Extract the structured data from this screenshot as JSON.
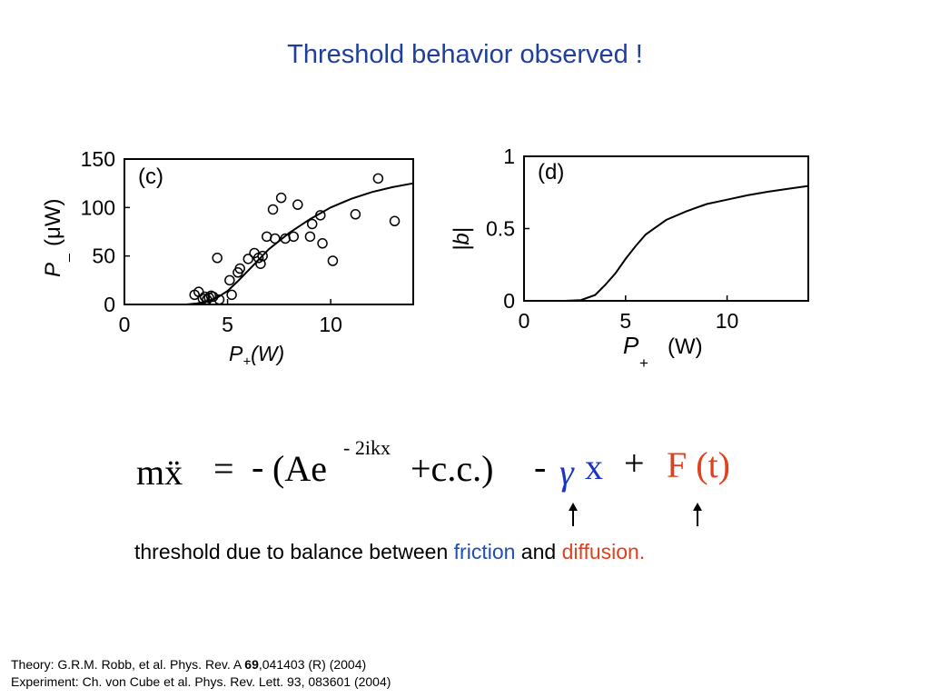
{
  "title": "Threshold behavior observed !",
  "chart_data": [
    {
      "panel": "(c)",
      "type": "scatter",
      "ylabel_main": "P",
      "ylabel_sub": "_",
      "ylabel_unit": "(μW)",
      "xlabel_main": "P",
      "xlabel_sub": "+",
      "xlabel_unit": "(W)",
      "xlim": [
        0,
        14
      ],
      "ylim": [
        0,
        150
      ],
      "xticks": [
        "0",
        "5",
        "10"
      ],
      "yticks": [
        "0",
        "50",
        "100",
        "150"
      ],
      "xtick_values": [
        0,
        5,
        10
      ],
      "ytick_values": [
        0,
        50,
        100,
        150
      ],
      "series": [
        {
          "kind": "markers",
          "x": [
            3.4,
            3.6,
            3.8,
            3.9,
            4.0,
            4.1,
            4.2,
            4.3,
            4.5,
            4.6,
            5.1,
            5.2,
            5.5,
            5.6,
            6.0,
            6.3,
            6.5,
            6.6,
            6.7,
            6.9,
            7.2,
            7.3,
            7.6,
            7.8,
            8.2,
            8.4,
            9.0,
            9.1,
            9.5,
            9.6,
            10.1,
            11.2,
            12.3,
            13.1
          ],
          "y": [
            10,
            13,
            6,
            8,
            5,
            7,
            9,
            8,
            48,
            5,
            25,
            10,
            33,
            37,
            47,
            53,
            48,
            42,
            50,
            70,
            98,
            68,
            110,
            68,
            70,
            103,
            70,
            83,
            92,
            63,
            45,
            93,
            130,
            86
          ]
        },
        {
          "kind": "fit-line",
          "x": [
            1.0,
            3.0,
            3.5,
            4.0,
            4.5,
            5.0,
            5.5,
            6.0,
            7.0,
            8.0,
            9.0,
            10.0,
            11.0,
            12.0,
            13.0,
            14.0
          ],
          "y": [
            0,
            0,
            1,
            3,
            7,
            14,
            24,
            35,
            57,
            74,
            88,
            100,
            109,
            116,
            121,
            125
          ]
        }
      ]
    },
    {
      "panel": "(d)",
      "type": "line",
      "ylabel": "|b|",
      "xlabel_main": "P",
      "xlabel_sub": "+",
      "xlabel_unit": "(W)",
      "xlim": [
        0,
        14
      ],
      "ylim": [
        0,
        1
      ],
      "xticks": [
        "0",
        "5",
        "10"
      ],
      "yticks": [
        "0",
        "0.5",
        "1"
      ],
      "xtick_values": [
        0,
        5,
        10
      ],
      "ytick_values": [
        0,
        0.5,
        1
      ],
      "series": [
        {
          "x": [
            1.0,
            2.0,
            2.8,
            3.5,
            4.0,
            4.5,
            5.0,
            5.5,
            6.0,
            7.0,
            8.0,
            9.0,
            10.0,
            11.0,
            12.0,
            13.0,
            14.0
          ],
          "y": [
            0,
            0,
            0.005,
            0.04,
            0.11,
            0.19,
            0.29,
            0.38,
            0.46,
            0.56,
            0.62,
            0.67,
            0.7,
            0.73,
            0.755,
            0.775,
            0.795
          ]
        }
      ]
    }
  ],
  "equation": {
    "lhs": "mẍ",
    "equals": "=",
    "minus1": "-",
    "paren_open": "(Ae",
    "exponent": "- 2ikx",
    "plus_cc": "+c.c.)",
    "minus2": "-",
    "gamma": "γ",
    "x": "x",
    "plus": "+",
    "force": "F (t)",
    "gamma_color": "#1a35c6",
    "force_color": "#e0401c"
  },
  "caption": {
    "pre": "threshold due to balance between ",
    "friction": "friction",
    "mid": " and ",
    "diffusion": "diffusion",
    "post": ".",
    "friction_color": "#1f4fb0",
    "diffusion_color": "#e0401c"
  },
  "references": {
    "theory_pre": "Theory: G.R.M. Robb, et al. Phys. Rev. A ",
    "theory_bold": "69",
    "theory_post": ",041403 (R) (2004)",
    "experiment": "Experiment:  Ch. von Cube et al. Phys. Rev. Lett. 93, 083601 (2004)"
  }
}
